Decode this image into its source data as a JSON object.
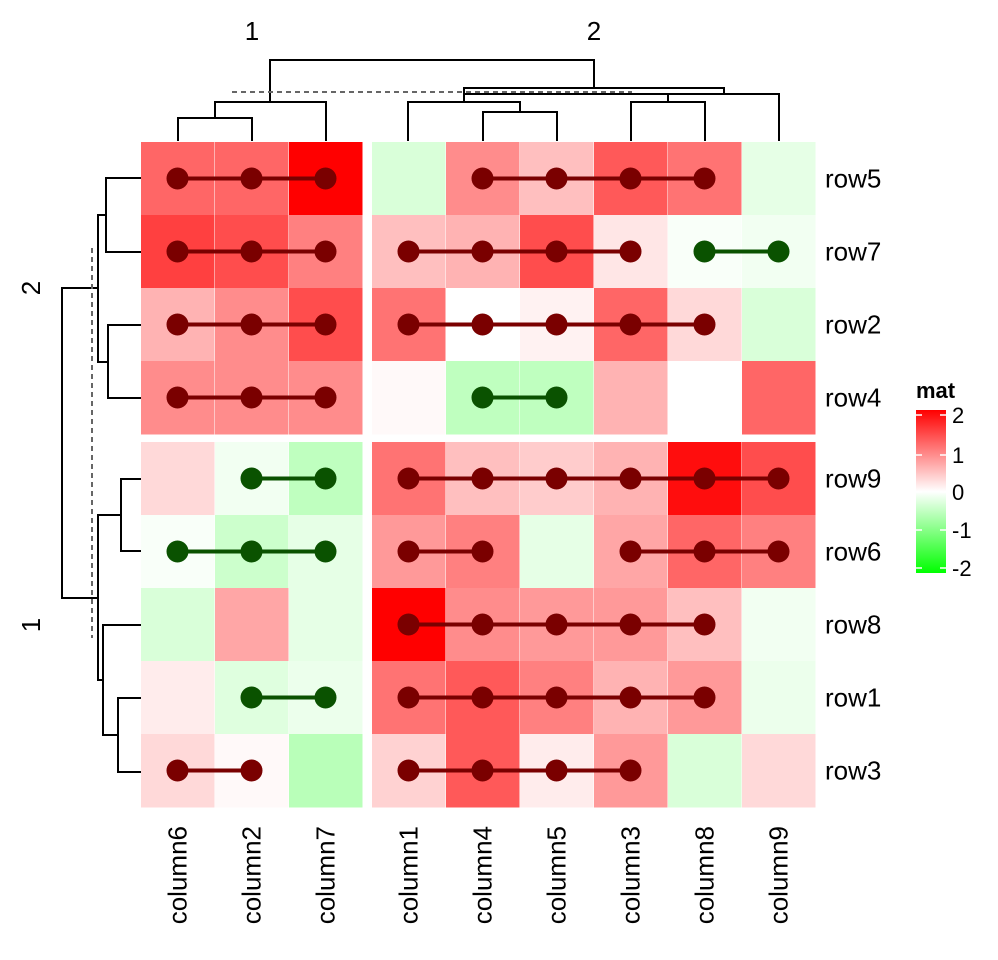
{
  "chart_data": {
    "type": "heatmap",
    "title": "",
    "rows": [
      "row5",
      "row7",
      "row2",
      "row4",
      "row9",
      "row6",
      "row8",
      "row1",
      "row3"
    ],
    "columns": [
      "column6",
      "column2",
      "column7",
      "column1",
      "column4",
      "column5",
      "column3",
      "column8",
      "column9"
    ],
    "row_split_labels": [
      "2",
      "1"
    ],
    "column_split_labels": [
      "1",
      "2"
    ],
    "values": [
      [
        1.2,
        1.2,
        2.0,
        -0.3,
        0.9,
        0.5,
        1.3,
        1.1,
        -0.2
      ],
      [
        1.5,
        1.4,
        1.0,
        0.5,
        0.6,
        1.4,
        0.2,
        -0.05,
        -0.1
      ],
      [
        0.6,
        0.9,
        1.4,
        1.1,
        0.0,
        0.1,
        1.2,
        0.3,
        -0.3
      ],
      [
        0.9,
        0.9,
        0.9,
        0.05,
        -0.5,
        -0.5,
        0.6,
        0.0,
        1.2
      ],
      [
        0.3,
        -0.1,
        -0.5,
        1.1,
        0.5,
        0.4,
        0.6,
        1.9,
        1.4
      ],
      [
        -0.05,
        -0.4,
        -0.2,
        0.8,
        1.0,
        -0.2,
        0.7,
        1.2,
        1.0
      ],
      [
        -0.3,
        0.7,
        -0.2,
        2.0,
        0.9,
        0.8,
        0.8,
        0.5,
        -0.1
      ],
      [
        0.15,
        -0.25,
        -0.15,
        1.1,
        1.3,
        1.0,
        0.6,
        0.8,
        -0.15
      ],
      [
        0.3,
        0.05,
        -0.55,
        0.35,
        1.3,
        0.15,
        0.8,
        -0.3,
        0.3
      ]
    ],
    "points": [
      [
        1,
        1,
        1,
        0,
        1,
        1,
        1,
        1,
        0
      ],
      [
        1,
        1,
        1,
        1,
        1,
        1,
        1,
        -1,
        -1
      ],
      [
        1,
        1,
        1,
        1,
        1,
        1,
        1,
        1,
        0
      ],
      [
        1,
        1,
        1,
        0,
        -1,
        -1,
        0,
        0,
        0
      ],
      [
        0,
        -1,
        -1,
        1,
        1,
        1,
        1,
        1,
        1
      ],
      [
        -1,
        -1,
        -1,
        1,
        1,
        0,
        1,
        1,
        1
      ],
      [
        0,
        0,
        0,
        1,
        1,
        1,
        1,
        1,
        0
      ],
      [
        0,
        -1,
        -1,
        1,
        1,
        1,
        1,
        1,
        0
      ],
      [
        1,
        1,
        0,
        1,
        1,
        1,
        1,
        0,
        0
      ]
    ],
    "legend": {
      "title": "mat",
      "ticks": [
        "2",
        "1",
        "0",
        "-1",
        "-2"
      ],
      "placement": "right"
    },
    "colors": {
      "high": "#ff0000",
      "mid": "#ffffff",
      "low": "#00ff00",
      "pos_point": "#7a0000",
      "neg_point": "#0a5200"
    },
    "value_range": [
      -2,
      2
    ]
  }
}
